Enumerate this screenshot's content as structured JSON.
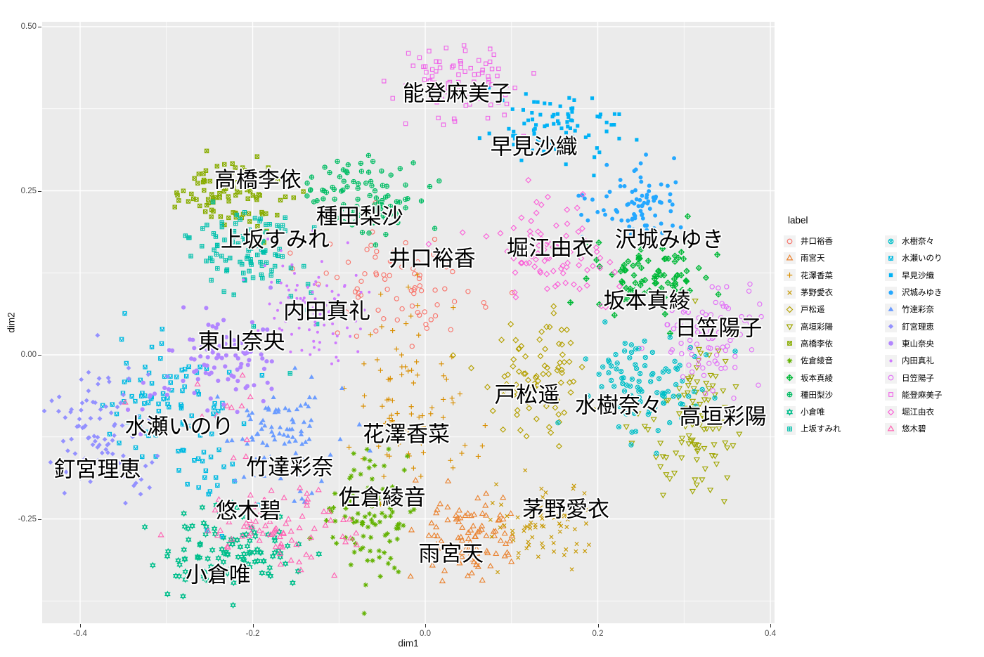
{
  "chart_data": {
    "type": "scatter",
    "title": "",
    "xlabel": "dim1",
    "ylabel": "dim2",
    "legend_title": "label",
    "xlim": [
      -0.444,
      0.405
    ],
    "ylim": [
      -0.409,
      0.5075
    ],
    "x_ticks": {
      "values": [
        -0.4,
        -0.2,
        0.0,
        0.2,
        0.4
      ],
      "labels": [
        "-0.4",
        "-0.2",
        "0.0",
        "0.2",
        "0.4"
      ]
    },
    "y_ticks": {
      "values": [
        0.5,
        0.25,
        0.0,
        -0.25
      ],
      "labels": [
        "0.50",
        "0.25",
        "0.00",
        "-0.25"
      ]
    },
    "x_minor": [
      -0.3,
      -0.1,
      0.1,
      0.3
    ],
    "y_minor": [
      0.375,
      0.125,
      -0.125,
      -0.375
    ],
    "grid": true,
    "panel_bg": "#EBEBEB",
    "grid_color": "#FFFFFF",
    "tick_label_color": "#4D4D4D",
    "legend_position": "right",
    "series": [
      {
        "name": "井口裕香",
        "color": "#F8766D",
        "shape": 1,
        "blobs": [
          {
            "c": [
              -0.03,
              0.105
            ],
            "sd": [
              0.05,
              0.042
            ],
            "n": 75
          }
        ],
        "label": {
          "x": 0.008,
          "y": 0.147
        }
      },
      {
        "name": "雨宮天",
        "color": "#EA8331",
        "shape": 2,
        "blobs": [
          {
            "c": [
              0.049,
              -0.278
            ],
            "sd": [
              0.026,
              0.03
            ],
            "n": 92
          }
        ],
        "label": {
          "x": 0.03,
          "y": -0.303
        }
      },
      {
        "name": "花澤香菜",
        "color": "#D98E00",
        "shape": 3,
        "blobs": [
          {
            "c": [
              -0.022,
              -0.03
            ],
            "sd": [
              0.03,
              0.055
            ],
            "n": 42
          },
          {
            "c": [
              -0.015,
              -0.135
            ],
            "sd": [
              0.035,
              0.045
            ],
            "n": 42
          }
        ],
        "label": {
          "x": -0.022,
          "y": -0.121
        }
      },
      {
        "name": "茅野愛衣",
        "color": "#C79800",
        "shape": 4,
        "blobs": [
          {
            "c": [
              0.138,
              -0.252
            ],
            "sd": [
              0.03,
              0.03
            ],
            "n": 76
          }
        ],
        "label": {
          "x": 0.163,
          "y": -0.236
        }
      },
      {
        "name": "戸松遥",
        "color": "#B4A000",
        "shape": 5,
        "blobs": [
          {
            "c": [
              0.128,
              -0.03
            ],
            "sd": [
              0.033,
              0.045
            ],
            "n": 86
          }
        ],
        "label": {
          "x": 0.118,
          "y": -0.061
        }
      },
      {
        "name": "高垣彩陽",
        "color": "#A0A600",
        "shape": 6,
        "blobs": [
          {
            "c": [
              0.31,
              -0.115
            ],
            "sd": [
              0.026,
              0.05
            ],
            "n": 84
          },
          {
            "c": [
              0.33,
              -0.02
            ],
            "sd": [
              0.02,
              0.03
            ],
            "n": 12
          }
        ],
        "label": {
          "x": 0.345,
          "y": -0.094
        }
      },
      {
        "name": "高橋李依",
        "color": "#88AC00",
        "shape": 7,
        "blobs": [
          {
            "c": [
              -0.225,
              0.24
            ],
            "sd": [
              0.032,
              0.026
            ],
            "n": 90
          }
        ],
        "label": {
          "x": -0.194,
          "y": 0.267
        }
      },
      {
        "name": "佐倉綾音",
        "color": "#62B200",
        "shape": 8,
        "blobs": [
          {
            "c": [
              -0.066,
              -0.24
            ],
            "sd": [
              0.024,
              0.048
            ],
            "n": 96
          }
        ],
        "label": {
          "x": -0.05,
          "y": -0.217
        }
      },
      {
        "name": "坂本真綾",
        "color": "#00B837",
        "shape": 9,
        "blobs": [
          {
            "c": [
              0.264,
              0.12
            ],
            "sd": [
              0.033,
              0.03
            ],
            "n": 90
          }
        ],
        "label": {
          "x": 0.257,
          "y": 0.082
        }
      },
      {
        "name": "種田梨沙",
        "color": "#00BC63",
        "shape": 10,
        "blobs": [
          {
            "c": [
              -0.068,
              0.238
            ],
            "sd": [
              0.033,
              0.036
            ],
            "n": 95
          }
        ],
        "label": {
          "x": -0.076,
          "y": 0.211
        }
      },
      {
        "name": "小倉唯",
        "color": "#00BE8B",
        "shape": 11,
        "blobs": [
          {
            "c": [
              -0.225,
              -0.3
            ],
            "sd": [
              0.036,
              0.034
            ],
            "n": 108
          }
        ],
        "label": {
          "x": -0.24,
          "y": -0.335
        }
      },
      {
        "name": "上坂すみれ",
        "color": "#00C0AC",
        "shape": 12,
        "blobs": [
          {
            "c": [
              -0.213,
              0.163
            ],
            "sd": [
              0.034,
              0.03
            ],
            "n": 86
          },
          {
            "c": [
              -0.16,
              0.08
            ],
            "sd": [
              0.03,
              0.04
            ],
            "n": 14
          }
        ],
        "label": {
          "x": -0.174,
          "y": 0.176
        }
      },
      {
        "name": "水樹奈々",
        "color": "#00BFC8",
        "shape": 13,
        "blobs": [
          {
            "c": [
              0.253,
              -0.045
            ],
            "sd": [
              0.034,
              0.042
            ],
            "n": 100
          }
        ],
        "label": {
          "x": 0.224,
          "y": -0.077
        }
      },
      {
        "name": "水瀬いのり",
        "color": "#00BAE2",
        "shape": 14,
        "blobs": [
          {
            "c": [
              -0.288,
              -0.075
            ],
            "sd": [
              0.038,
              0.05
            ],
            "n": 92
          },
          {
            "c": [
              -0.245,
              -0.195
            ],
            "sd": [
              0.03,
              0.045
            ],
            "n": 18
          }
        ],
        "label": {
          "x": -0.285,
          "y": -0.109
        }
      },
      {
        "name": "早見沙織",
        "color": "#00B2F5",
        "shape": 15,
        "blobs": [
          {
            "c": [
              0.15,
              0.345
            ],
            "sd": [
              0.038,
              0.027
            ],
            "n": 86
          }
        ],
        "label": {
          "x": 0.126,
          "y": 0.317
        }
      },
      {
        "name": "沢城みゆき",
        "color": "#25A8FF",
        "shape": 16,
        "blobs": [
          {
            "c": [
              0.245,
              0.228
            ],
            "sd": [
              0.03,
              0.03
            ],
            "n": 86
          }
        ],
        "label": {
          "x": 0.283,
          "y": 0.176
        }
      },
      {
        "name": "竹達彩奈",
        "color": "#6B9CFF",
        "shape": 17,
        "blobs": [
          {
            "c": [
              -0.17,
              -0.125
            ],
            "sd": [
              0.033,
              0.042
            ],
            "n": 92
          }
        ],
        "label": {
          "x": -0.157,
          "y": -0.171
        }
      },
      {
        "name": "釘宮理恵",
        "color": "#9491FF",
        "shape": 18,
        "blobs": [
          {
            "c": [
              -0.368,
              -0.11
            ],
            "sd": [
              0.035,
              0.055
            ],
            "n": 95
          }
        ],
        "label": {
          "x": -0.38,
          "y": -0.175
        }
      },
      {
        "name": "東山奈央",
        "color": "#B286FF",
        "shape": 19,
        "blobs": [
          {
            "c": [
              -0.236,
              -0.006
            ],
            "sd": [
              0.032,
              0.034
            ],
            "n": 88
          },
          {
            "c": [
              -0.305,
              -0.072
            ],
            "sd": [
              0.025,
              0.03
            ],
            "n": 12
          }
        ],
        "label": {
          "x": -0.213,
          "y": 0.02
        }
      },
      {
        "name": "内田真礼",
        "color": "#CF7BFF",
        "shape": 20,
        "blobs": [
          {
            "c": [
              -0.125,
              0.062
            ],
            "sd": [
              0.03,
              0.038
            ],
            "n": 85
          },
          {
            "c": [
              -0.155,
              0.14
            ],
            "sd": [
              0.028,
              0.028
            ],
            "n": 10
          }
        ],
        "label": {
          "x": -0.114,
          "y": 0.066
        }
      },
      {
        "name": "日笠陽子",
        "color": "#E16FF7",
        "shape": 21,
        "blobs": [
          {
            "c": [
              0.328,
              0.03
            ],
            "sd": [
              0.03,
              0.038
            ],
            "n": 86
          }
        ],
        "label": {
          "x": 0.34,
          "y": 0.041
        }
      },
      {
        "name": "能登麻美子",
        "color": "#EF67E9",
        "shape": 22,
        "blobs": [
          {
            "c": [
              0.04,
              0.42
            ],
            "sd": [
              0.04,
              0.03
            ],
            "n": 86
          }
        ],
        "label": {
          "x": 0.037,
          "y": 0.398
        }
      },
      {
        "name": "堀江由衣",
        "color": "#FA62D8",
        "shape": 23,
        "blobs": [
          {
            "c": [
              0.15,
              0.158
            ],
            "sd": [
              0.035,
              0.045
            ],
            "n": 86
          }
        ],
        "label": {
          "x": 0.145,
          "y": 0.163
        }
      },
      {
        "name": "悠木碧",
        "color": "#FF64B3",
        "shape": 24,
        "blobs": [
          {
            "c": [
              -0.168,
              -0.255
            ],
            "sd": [
              0.04,
              0.035
            ],
            "n": 84
          },
          {
            "c": [
              -0.232,
              -0.105
            ],
            "sd": [
              0.035,
              0.05
            ],
            "n": 12
          }
        ],
        "label": {
          "x": -0.205,
          "y": -0.238
        }
      }
    ]
  }
}
